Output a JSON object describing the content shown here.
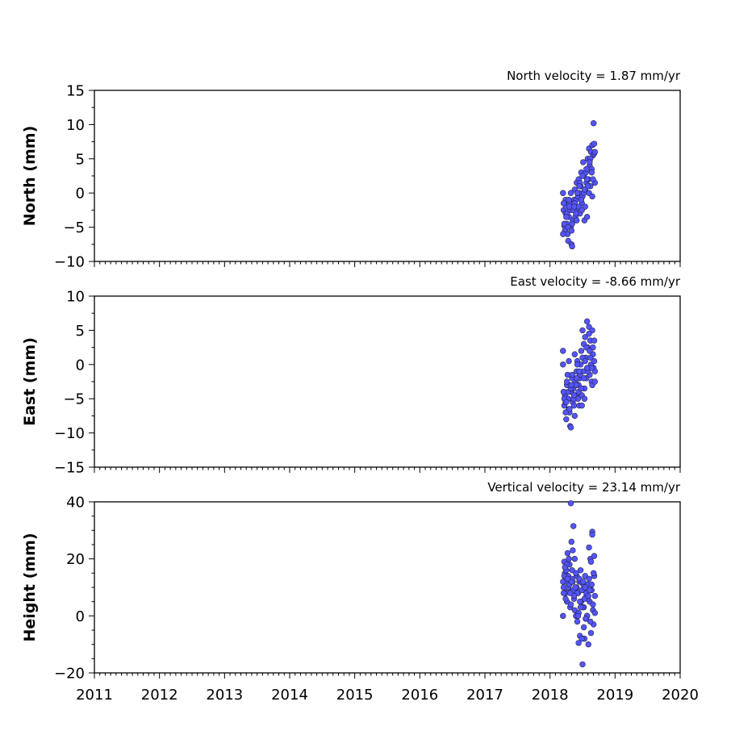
{
  "chart_data": [
    {
      "type": "scatter",
      "ylabel": "North (mm)",
      "velocity_label": "North velocity = 1.87 mm/yr",
      "xlim": [
        2011,
        2020
      ],
      "ylim": [
        -10,
        15
      ],
      "yticks": [
        -10,
        -5,
        0,
        5,
        10,
        15
      ],
      "color": "#5555ff",
      "x": [
        2018.2,
        2018.21,
        2018.22,
        2018.23,
        2018.24,
        2018.25,
        2018.26,
        2018.27,
        2018.28,
        2018.29,
        2018.3,
        2018.31,
        2018.32,
        2018.33,
        2018.34,
        2018.35,
        2018.36,
        2018.37,
        2018.38,
        2018.39,
        2018.4,
        2018.41,
        2018.42,
        2018.43,
        2018.44,
        2018.45,
        2018.46,
        2018.47,
        2018.48,
        2018.49,
        2018.5,
        2018.51,
        2018.52,
        2018.53,
        2018.54,
        2018.55,
        2018.56,
        2018.57,
        2018.58,
        2018.59,
        2018.6,
        2018.61,
        2018.62,
        2018.63,
        2018.64,
        2018.65,
        2018.66,
        2018.67,
        2018.68,
        2018.69,
        2018.2,
        2018.22,
        2018.24,
        2018.26,
        2018.28,
        2018.3,
        2018.32,
        2018.34,
        2018.36,
        2018.38,
        2018.4,
        2018.42,
        2018.44,
        2018.46,
        2018.48,
        2018.5,
        2018.52,
        2018.54,
        2018.56,
        2018.58,
        2018.6,
        2018.62,
        2018.64,
        2018.66,
        2018.68,
        2018.21,
        2018.25,
        2018.29,
        2018.33,
        2018.37,
        2018.41,
        2018.45,
        2018.49,
        2018.53,
        2018.57,
        2018.61,
        2018.65,
        2018.69
      ],
      "y": [
        0.0,
        -2.5,
        -4.8,
        -5.5,
        -3.0,
        -2.0,
        -4.5,
        -6.0,
        -7.0,
        -3.5,
        -1.5,
        -2.5,
        -5.0,
        -7.5,
        -7.8,
        -4.0,
        -2.0,
        -1.0,
        0.5,
        -3.5,
        -1.0,
        1.5,
        -2.5,
        -0.5,
        2.0,
        0.0,
        -3.0,
        1.0,
        3.0,
        -1.5,
        -0.5,
        4.5,
        2.5,
        -4.0,
        0.5,
        3.0,
        1.5,
        -3.5,
        5.0,
        2.0,
        6.5,
        4.0,
        1.0,
        6.0,
        3.5,
        7.0,
        5.5,
        10.2,
        7.2,
        1.5,
        -6.0,
        -4.5,
        -1.0,
        -3.0,
        -5.0,
        -2.0,
        0.0,
        -4.5,
        -2.5,
        -1.5,
        -3.0,
        0.0,
        -2.0,
        1.5,
        -1.0,
        2.5,
        0.0,
        -2.0,
        3.5,
        1.0,
        0.0,
        5.0,
        3.0,
        2.0,
        5.8,
        -1.5,
        -3.5,
        -1.0,
        -5.5,
        -2.0,
        -4.0,
        1.0,
        -2.5,
        0.5,
        2.0,
        4.5,
        -0.5,
        6.0
      ]
    },
    {
      "type": "scatter",
      "ylabel": "East (mm)",
      "velocity_label": "East velocity = -8.66 mm/yr",
      "xlim": [
        2011,
        2020
      ],
      "ylim": [
        -15,
        10
      ],
      "yticks": [
        -15,
        -10,
        -5,
        0,
        5,
        10
      ],
      "color": "#5555ff",
      "x": [
        2018.2,
        2018.21,
        2018.22,
        2018.23,
        2018.24,
        2018.25,
        2018.26,
        2018.27,
        2018.28,
        2018.29,
        2018.3,
        2018.31,
        2018.32,
        2018.33,
        2018.34,
        2018.35,
        2018.36,
        2018.37,
        2018.38,
        2018.39,
        2018.4,
        2018.41,
        2018.42,
        2018.43,
        2018.44,
        2018.45,
        2018.46,
        2018.47,
        2018.48,
        2018.49,
        2018.5,
        2018.51,
        2018.52,
        2018.53,
        2018.54,
        2018.55,
        2018.56,
        2018.57,
        2018.58,
        2018.59,
        2018.6,
        2018.61,
        2018.62,
        2018.63,
        2018.64,
        2018.65,
        2018.66,
        2018.67,
        2018.68,
        2018.69,
        2018.2,
        2018.22,
        2018.24,
        2018.26,
        2018.28,
        2018.3,
        2018.32,
        2018.34,
        2018.36,
        2018.38,
        2018.4,
        2018.42,
        2018.44,
        2018.46,
        2018.48,
        2018.5,
        2018.52,
        2018.54,
        2018.56,
        2018.58,
        2018.6,
        2018.62,
        2018.64,
        2018.66,
        2018.68,
        2018.21,
        2018.25,
        2018.29,
        2018.33,
        2018.37,
        2018.41,
        2018.45,
        2018.49,
        2018.53,
        2018.57,
        2018.61,
        2018.65,
        2018.69
      ],
      "y": [
        2.0,
        -4.0,
        -6.0,
        -4.5,
        -5.5,
        -8.0,
        -3.0,
        -1.5,
        -5.0,
        -6.5,
        -7.0,
        -9.0,
        -9.2,
        -4.0,
        -2.0,
        -5.5,
        -3.5,
        -6.0,
        1.5,
        -2.5,
        -4.5,
        -1.0,
        0.5,
        -5.0,
        -3.0,
        -6.0,
        -2.0,
        0.0,
        2.0,
        -4.5,
        5.0,
        -1.0,
        3.0,
        -3.5,
        4.0,
        1.0,
        -2.0,
        6.3,
        2.5,
        -0.5,
        5.5,
        -1.5,
        3.5,
        0.0,
        -2.5,
        5.0,
        1.5,
        -0.5,
        3.5,
        -1.0,
        0.0,
        -5.0,
        -7.0,
        -2.5,
        -4.0,
        -6.5,
        -3.5,
        -1.5,
        -5.0,
        -7.5,
        -3.0,
        0.0,
        -4.0,
        -1.5,
        -3.5,
        1.0,
        -2.0,
        0.5,
        2.5,
        -1.0,
        4.5,
        1.0,
        -0.5,
        2.5,
        0.5,
        -4.0,
        -5.5,
        0.5,
        -3.0,
        -4.5,
        -2.0,
        -1.0,
        -6.0,
        -5.0,
        -0.5,
        2.0,
        -3.0,
        -2.5
      ]
    },
    {
      "type": "scatter",
      "ylabel": "Height (mm)",
      "velocity_label": "Vertical velocity = 23.14 mm/yr",
      "xlim": [
        2011,
        2020
      ],
      "ylim": [
        -20,
        40
      ],
      "yticks": [
        -20,
        0,
        20,
        40
      ],
      "xticks": [
        2011,
        2012,
        2013,
        2014,
        2015,
        2016,
        2017,
        2018,
        2019,
        2020
      ],
      "color": "#5555ff",
      "x": [
        2018.2,
        2018.21,
        2018.22,
        2018.23,
        2018.24,
        2018.25,
        2018.26,
        2018.27,
        2018.28,
        2018.29,
        2018.3,
        2018.31,
        2018.32,
        2018.33,
        2018.34,
        2018.35,
        2018.36,
        2018.37,
        2018.38,
        2018.39,
        2018.4,
        2018.41,
        2018.42,
        2018.43,
        2018.44,
        2018.45,
        2018.46,
        2018.47,
        2018.48,
        2018.49,
        2018.5,
        2018.51,
        2018.52,
        2018.53,
        2018.54,
        2018.55,
        2018.56,
        2018.57,
        2018.58,
        2018.59,
        2018.6,
        2018.61,
        2018.62,
        2018.63,
        2018.64,
        2018.65,
        2018.66,
        2018.67,
        2018.68,
        2018.69,
        2018.2,
        2018.22,
        2018.24,
        2018.26,
        2018.28,
        2018.3,
        2018.32,
        2018.34,
        2018.36,
        2018.38,
        2018.4,
        2018.42,
        2018.44,
        2018.46,
        2018.48,
        2018.5,
        2018.52,
        2018.54,
        2018.56,
        2018.58,
        2018.6,
        2018.62,
        2018.64,
        2018.66,
        2018.68,
        2018.21,
        2018.25,
        2018.29,
        2018.33,
        2018.37,
        2018.41,
        2018.45,
        2018.49,
        2018.53,
        2018.57,
        2018.61,
        2018.65,
        2018.69,
        2018.23,
        2018.27,
        2018.31,
        2018.35,
        2018.39,
        2018.43,
        2018.47,
        2018.51,
        2018.55,
        2018.59,
        2018.63,
        2018.67
      ],
      "y": [
        0.0,
        10.0,
        19.0,
        15.0,
        8.0,
        12.0,
        5.0,
        22.0,
        14.0,
        9.0,
        18.0,
        3.0,
        39.5,
        26.0,
        16.0,
        12.0,
        31.5,
        6.0,
        20.0,
        10.0,
        0.0,
        14.0,
        -2.0,
        8.0,
        -9.5,
        12.0,
        -7.0,
        16.0,
        5.0,
        9.0,
        -17.0,
        11.0,
        3.0,
        -8.0,
        14.0,
        -1.0,
        7.0,
        0.0,
        11.0,
        -10.0,
        24.0,
        5.0,
        20.0,
        -6.0,
        9.0,
        29.5,
        2.0,
        -3.0,
        21.0,
        7.0,
        12.0,
        14.0,
        6.0,
        18.0,
        10.0,
        11.0,
        4.0,
        13.0,
        9.0,
        2.0,
        15.0,
        8.0,
        1.0,
        5.0,
        12.0,
        3.0,
        -4.0,
        10.0,
        8.0,
        6.0,
        13.0,
        -2.0,
        11.0,
        4.0,
        14.0,
        8.0,
        16.0,
        20.0,
        12.0,
        7.0,
        10.0,
        13.0,
        -8.0,
        6.0,
        0.0,
        9.0,
        28.5,
        1.0,
        17.0,
        13.0,
        8.0,
        23.0,
        10.0,
        0.0,
        3.0,
        12.0,
        -1.0,
        7.0,
        19.0,
        15.0
      ]
    }
  ]
}
